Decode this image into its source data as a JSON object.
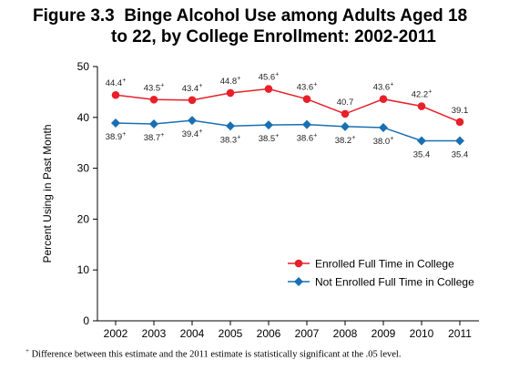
{
  "title_prefix": "Figure 3.3",
  "title_line1": "Binge Alcohol Use among Adults Aged 18",
  "title_line2": "to 22, by College Enrollment: 2002-2011",
  "footnote_mark": "+",
  "footnote_text": "Difference between this estimate and the 2011 estimate is statistically significant at the .05 level.",
  "colors": {
    "enrolled": "#e8202a",
    "not_enrolled": "#1a6fb3"
  },
  "chart_data": {
    "type": "line",
    "ylabel": "Percent Using in Past Month",
    "xlabel": "",
    "ylim": [
      0,
      50
    ],
    "yticks": [
      0,
      10,
      20,
      30,
      40,
      50
    ],
    "grid": false,
    "legend_placement": "bottom-right",
    "categories": [
      "2002",
      "2003",
      "2004",
      "2005",
      "2006",
      "2007",
      "2008",
      "2009",
      "2010",
      "2011"
    ],
    "series": [
      {
        "name": "Enrolled Full Time in College",
        "marker": "circle",
        "values": [
          44.4,
          43.5,
          43.4,
          44.8,
          45.6,
          43.6,
          40.7,
          43.6,
          42.2,
          39.1
        ],
        "labels": [
          "44.4",
          "43.5",
          "43.4",
          "44.8",
          "45.6",
          "43.6",
          "40.7",
          "43.6",
          "42.2",
          "39.1"
        ],
        "significant": [
          true,
          true,
          true,
          true,
          true,
          true,
          false,
          true,
          true,
          false
        ]
      },
      {
        "name": "Not Enrolled Full Time in College",
        "marker": "diamond",
        "values": [
          38.9,
          38.7,
          39.4,
          38.3,
          38.5,
          38.6,
          38.2,
          38.0,
          35.4,
          35.4
        ],
        "labels": [
          "38.9",
          "38.7",
          "39.4",
          "38.3",
          "38.5",
          "38.6",
          "38.2",
          "38.0",
          "35.4",
          "35.4"
        ],
        "significant": [
          true,
          true,
          true,
          true,
          true,
          true,
          true,
          true,
          false,
          false
        ]
      }
    ]
  }
}
